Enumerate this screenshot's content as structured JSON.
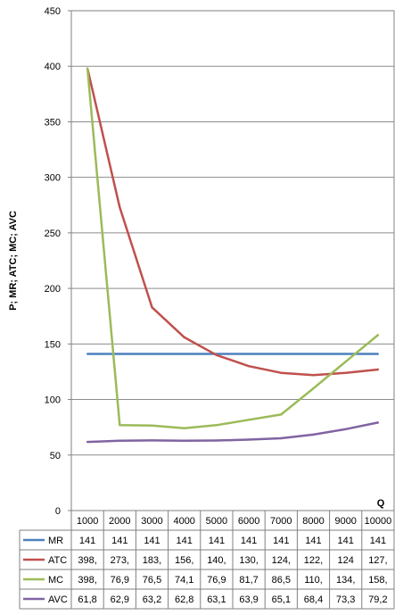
{
  "chart_data": {
    "type": "line",
    "ylabel": "P; MR; ATC; MC; AVC",
    "xlabel": "Q",
    "ylim": [
      0,
      450
    ],
    "yticks": [
      0,
      50,
      100,
      150,
      200,
      250,
      300,
      350,
      400,
      450
    ],
    "grid": true,
    "legend": "table-below",
    "categories": [
      "1000",
      "2000",
      "3000",
      "4000",
      "5000",
      "6000",
      "7000",
      "8000",
      "9000",
      "10000"
    ],
    "series": [
      {
        "name": "MR",
        "color": "#4f81bd",
        "values": [
          141,
          141,
          141,
          141,
          141,
          141,
          141,
          141,
          141,
          141
        ],
        "labels": [
          "141",
          "141",
          "141",
          "141",
          "141",
          "141",
          "141",
          "141",
          "141",
          "141"
        ]
      },
      {
        "name": "ATC",
        "color": "#c0504d",
        "values": [
          398,
          273,
          183,
          156,
          140,
          130,
          124,
          122,
          124,
          127
        ],
        "labels": [
          "398,",
          "273,",
          "183,",
          "156,",
          "140,",
          "130,",
          "124,",
          "122,",
          "124",
          "127,"
        ]
      },
      {
        "name": "MC",
        "color": "#9bbb59",
        "values": [
          398,
          76.9,
          76.5,
          74.1,
          76.9,
          81.7,
          86.5,
          110,
          134,
          158
        ],
        "labels": [
          "398,",
          "76,9",
          "76,5",
          "74,1",
          "76,9",
          "81,7",
          "86,5",
          "110,",
          "134,",
          "158,"
        ]
      },
      {
        "name": "AVC",
        "color": "#8064a2",
        "values": [
          61.8,
          62.9,
          63.2,
          62.8,
          63.1,
          63.9,
          65.1,
          68.4,
          73.3,
          79.2
        ],
        "labels": [
          "61,8",
          "62,9",
          "63,2",
          "62,8",
          "63,1",
          "63,9",
          "65,1",
          "68,4",
          "73,3",
          "79,2"
        ]
      }
    ]
  }
}
